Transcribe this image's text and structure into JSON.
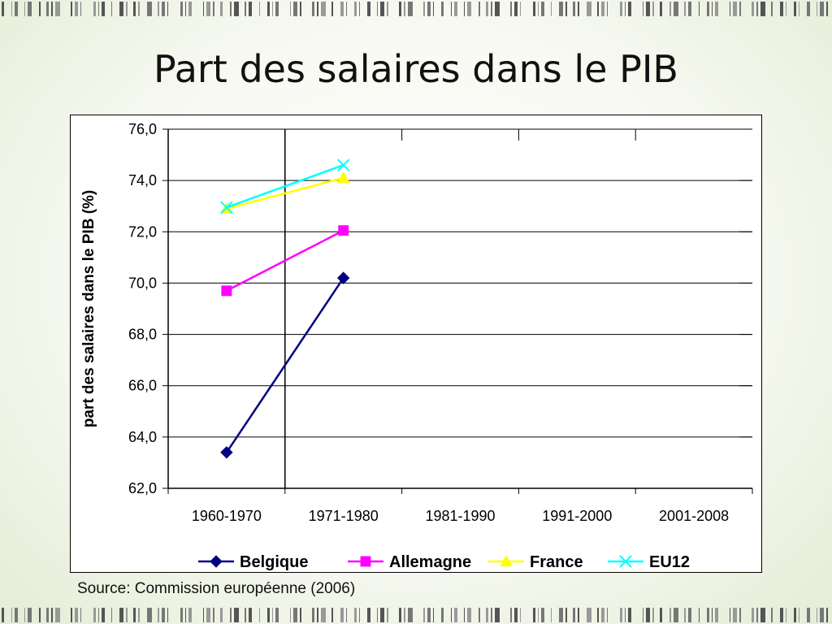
{
  "slide": {
    "title": "Part des salaires dans le PIB",
    "source": "Source: Commission européenne (2006)"
  },
  "chart_data": {
    "type": "line",
    "categories": [
      "1960-1970",
      "1971-1980",
      "1981-1990",
      "1991-2000",
      "2001-2008"
    ],
    "ylabel": "part des salaires dans le PIB (%)",
    "xlabel": "",
    "ylim": [
      62.0,
      76.0
    ],
    "yticks": [
      "62,0",
      "64,0",
      "66,0",
      "68,0",
      "70,0",
      "72,0",
      "74,0",
      "76,0"
    ],
    "grid": "horizontal",
    "legend_position": "bottom",
    "series": [
      {
        "name": "Belgique",
        "marker": "diamond",
        "color": "#000080",
        "values": [
          63.4,
          70.2,
          null,
          null,
          null
        ]
      },
      {
        "name": "Allemagne",
        "marker": "square",
        "color": "#FF00FF",
        "values": [
          69.7,
          72.05,
          null,
          null,
          null
        ]
      },
      {
        "name": "France",
        "marker": "triangle",
        "color": "#FFFF00",
        "values": [
          72.9,
          74.1,
          null,
          null,
          null
        ]
      },
      {
        "name": "EU12",
        "marker": "x",
        "color": "#00FFFF",
        "values": [
          72.95,
          74.6,
          null,
          null,
          null
        ]
      }
    ]
  }
}
